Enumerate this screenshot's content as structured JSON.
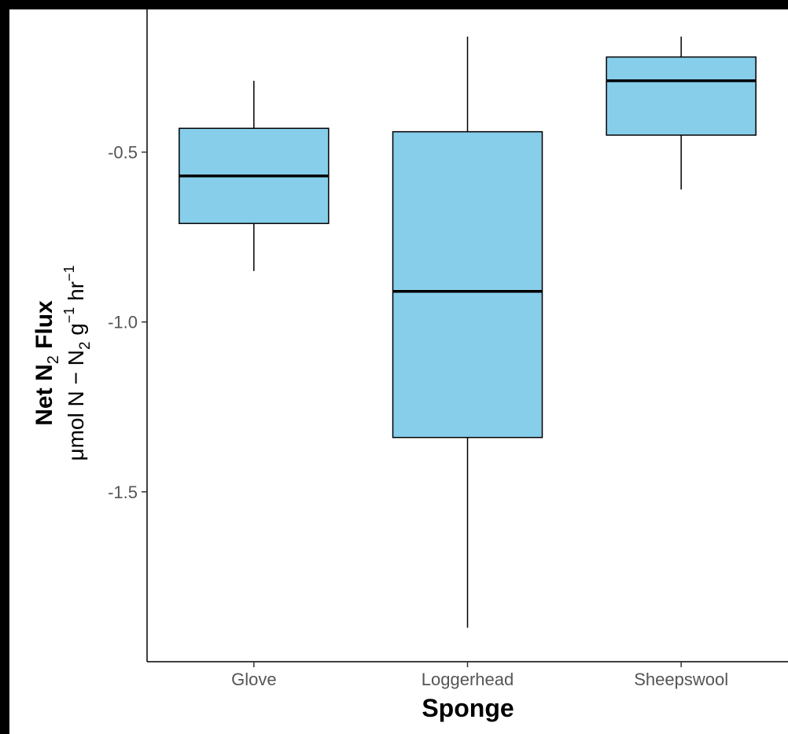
{
  "chart_data": {
    "type": "box",
    "categories": [
      "Glove",
      "Loggerhead",
      "Sheepswool"
    ],
    "boxes": [
      {
        "category": "Glove",
        "min": -0.85,
        "q1": -0.71,
        "median": -0.57,
        "q3": -0.43,
        "max": -0.29
      },
      {
        "category": "Loggerhead",
        "min": -1.9,
        "q1": -1.34,
        "median": -0.91,
        "q3": -0.44,
        "max": -0.16
      },
      {
        "category": "Sheepswool",
        "min": -0.61,
        "q1": -0.45,
        "median": -0.29,
        "q3": -0.22,
        "max": -0.16
      }
    ],
    "xlabel": "Sponge",
    "ylabel": {
      "line1": {
        "main": "Net N",
        "sub": "2",
        "tail": " Flux"
      },
      "line2": {
        "a": "μmol N − N",
        "sub": "2",
        "b": " g",
        "sup1": "−1",
        "c": " hr",
        "sup2": "−1"
      }
    },
    "yticks": [
      -0.5,
      -1.0,
      -1.5
    ],
    "ytick_labels": [
      "-0.5",
      "-1.0",
      "-1.5"
    ],
    "ylim": [
      -2.0,
      -0.08
    ],
    "box_fill": "#87CEEB",
    "grid": false
  }
}
